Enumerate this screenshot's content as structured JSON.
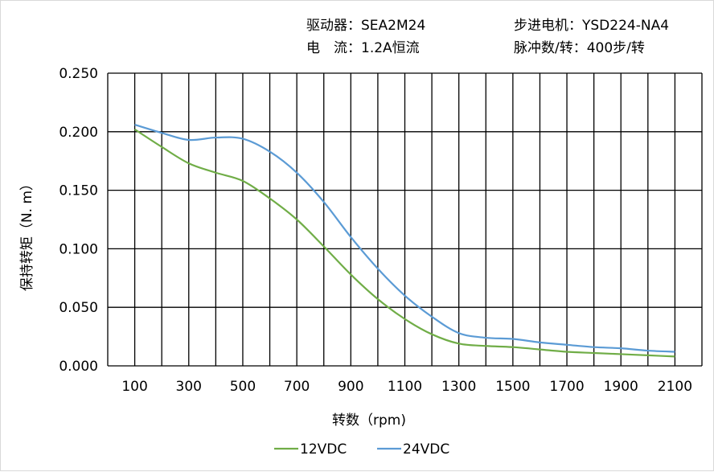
{
  "header": {
    "driver": "驱动器：SEA2M24",
    "motor": "步进电机：YSD224-NA4",
    "current": "电　流：1.2A恒流",
    "pulses": "脉冲数/转：400步/转"
  },
  "chart_data": {
    "type": "line",
    "title": "",
    "xlabel": "转数（rpm)",
    "ylabel": "保持转矩（N. m）",
    "x": [
      100,
      200,
      300,
      400,
      500,
      600,
      700,
      800,
      900,
      1000,
      1100,
      1200,
      1300,
      1400,
      1500,
      1600,
      1700,
      1800,
      1900,
      2000,
      2100
    ],
    "xlim": [
      0,
      2200
    ],
    "xticks": [
      "100",
      "300",
      "500",
      "700",
      "900",
      "1100",
      "1300",
      "1500",
      "1700",
      "1900",
      "2100"
    ],
    "ylim": [
      0,
      0.25
    ],
    "yticks": [
      "0.000",
      "0.050",
      "0.100",
      "0.150",
      "0.200",
      "0.250"
    ],
    "grid": true,
    "legend_position": "bottom",
    "series": [
      {
        "name": "12VDC",
        "color": "#70ad47",
        "values": [
          0.202,
          0.187,
          0.173,
          0.165,
          0.158,
          0.143,
          0.125,
          0.102,
          0.078,
          0.057,
          0.04,
          0.027,
          0.019,
          0.017,
          0.016,
          0.014,
          0.012,
          0.011,
          0.01,
          0.009,
          0.008
        ]
      },
      {
        "name": "24VDC",
        "color": "#5b9bd5",
        "values": [
          0.206,
          0.199,
          0.193,
          0.195,
          0.194,
          0.183,
          0.165,
          0.14,
          0.11,
          0.083,
          0.06,
          0.042,
          0.028,
          0.024,
          0.023,
          0.02,
          0.018,
          0.016,
          0.015,
          0.013,
          0.012
        ]
      }
    ]
  }
}
